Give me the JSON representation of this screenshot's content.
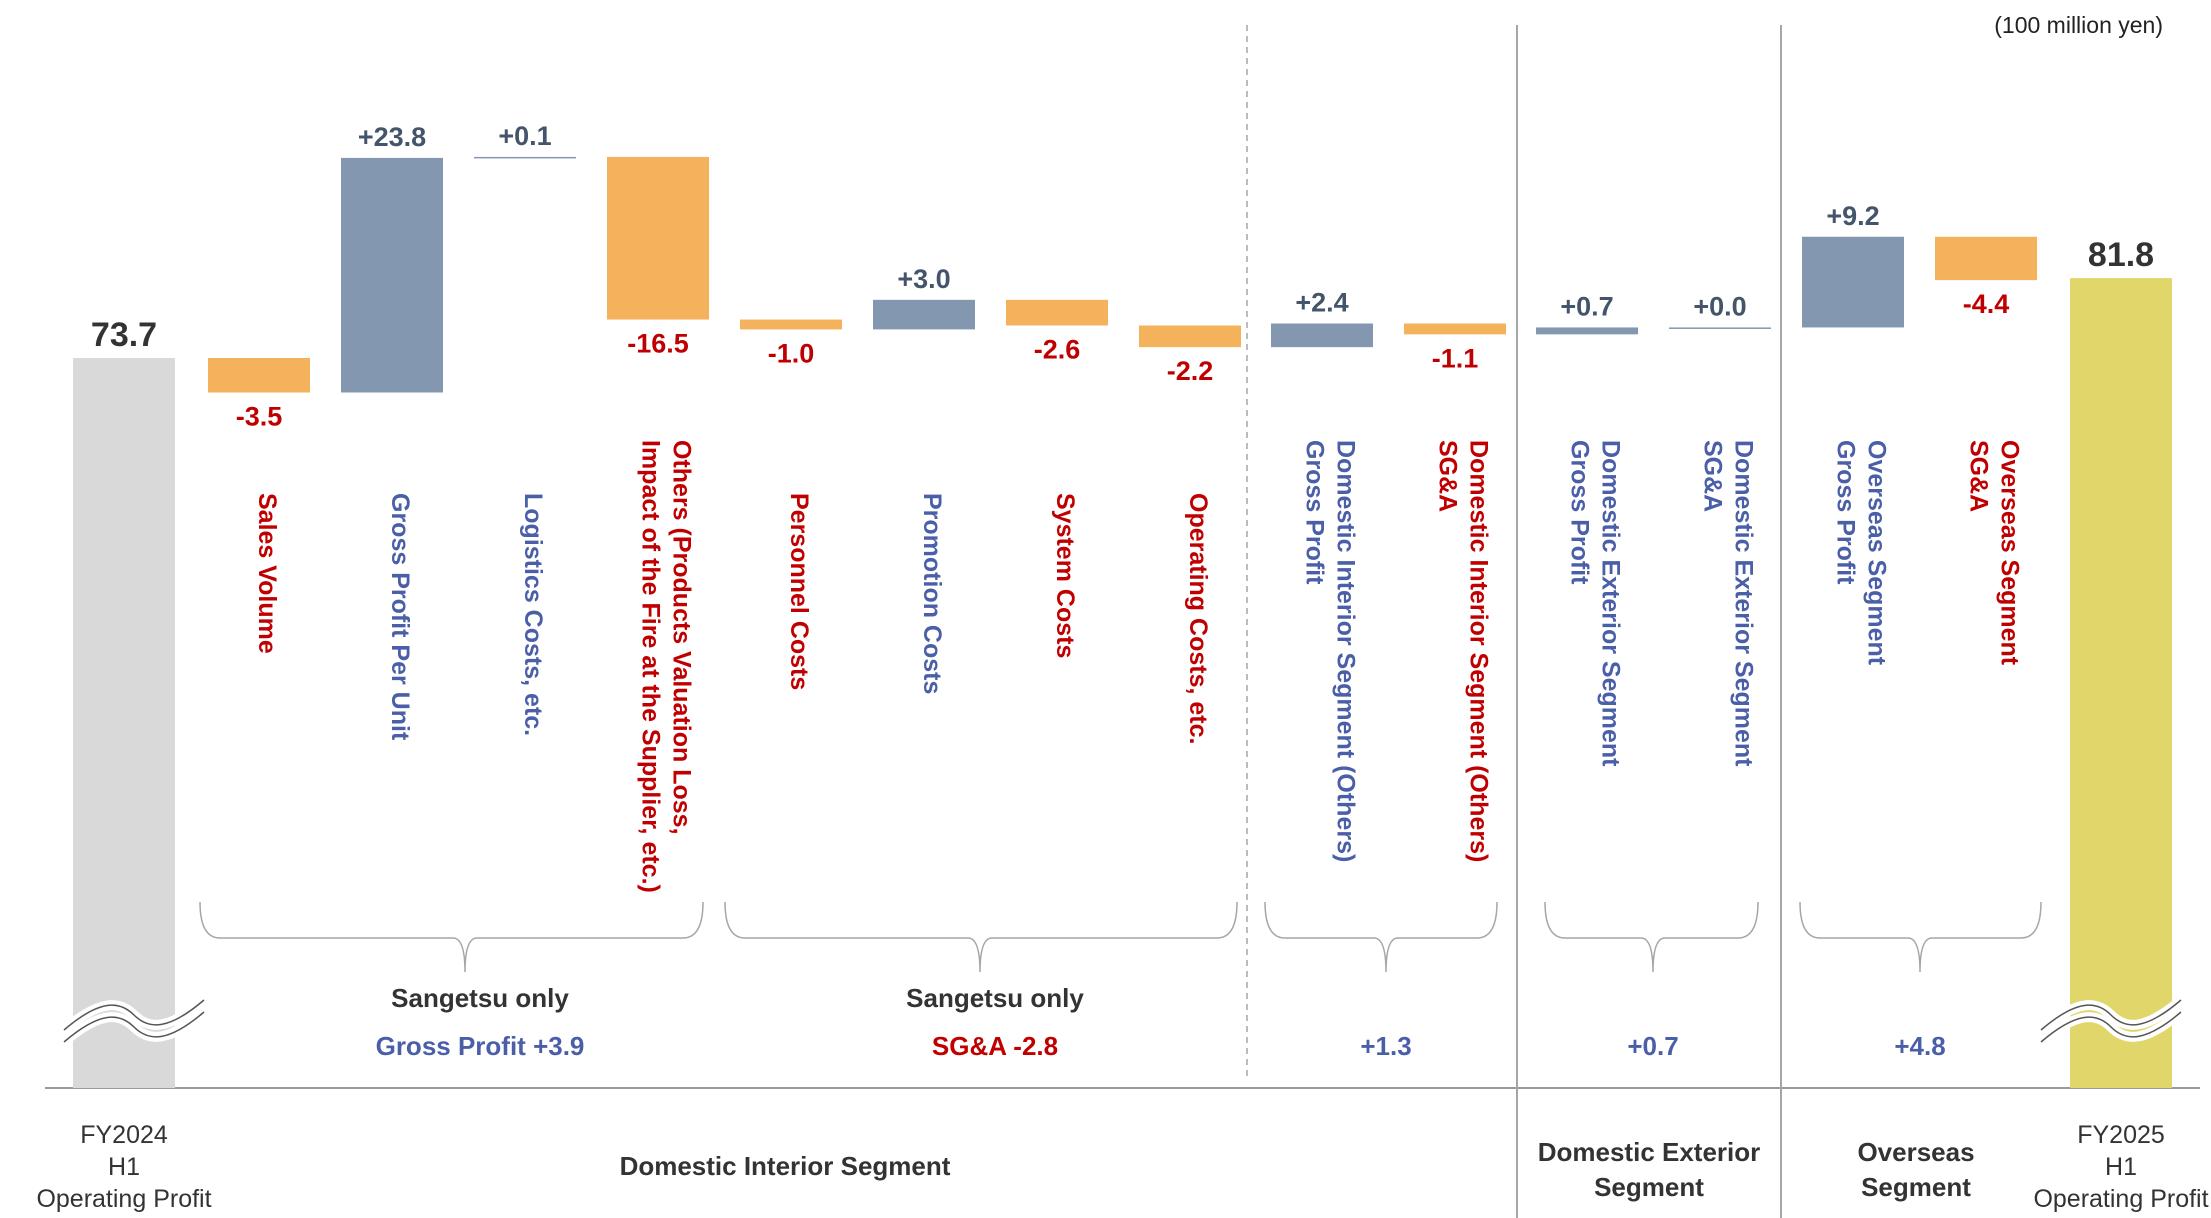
{
  "chart_data": {
    "type": "bar",
    "subtype": "waterfall",
    "unit": "(100 million yen)",
    "start": {
      "value": 73.7,
      "value_label": "73.7",
      "label": [
        "FY2024",
        "H1",
        "Operating Profit"
      ]
    },
    "end": {
      "value": 81.8,
      "value_label": "81.8",
      "label": [
        "FY2025",
        "H1",
        "Operating Profit"
      ]
    },
    "steps": [
      {
        "value": -3.5,
        "value_label": "-3.5",
        "category": [
          "Sales Volume"
        ],
        "kind": "decrease"
      },
      {
        "value": 23.8,
        "value_label": "+23.8",
        "category": [
          "Gross Profit Per Unit"
        ],
        "kind": "increase"
      },
      {
        "value": 0.1,
        "value_label": "+0.1",
        "category": [
          "Logistics Costs, etc."
        ],
        "kind": "increase"
      },
      {
        "value": -16.5,
        "value_label": "-16.5",
        "category": [
          "Others (Products Valuation Loss,",
          "Impact of the Fire at the Supplier, etc.)"
        ],
        "kind": "decrease"
      },
      {
        "value": -1.0,
        "value_label": "-1.0",
        "category": [
          "Personnel Costs"
        ],
        "kind": "decrease"
      },
      {
        "value": 3.0,
        "value_label": "+3.0",
        "category": [
          "Promotion Costs"
        ],
        "kind": "increase"
      },
      {
        "value": -2.6,
        "value_label": "-2.6",
        "category": [
          "System Costs"
        ],
        "kind": "decrease"
      },
      {
        "value": -2.2,
        "value_label": "-2.2",
        "category": [
          "Operating Costs, etc."
        ],
        "kind": "decrease"
      },
      {
        "value": 2.4,
        "value_label": "+2.4",
        "category": [
          "Domestic Interior Segment (Others)",
          "Gross Profit"
        ],
        "kind": "increase"
      },
      {
        "value": -1.1,
        "value_label": "-1.1",
        "category": [
          "Domestic Interior Segment (Others)",
          "SG&A"
        ],
        "kind": "decrease"
      },
      {
        "value": 0.7,
        "value_label": "+0.7",
        "category": [
          "Domestic Exterior Segment",
          "Gross Profit"
        ],
        "kind": "increase"
      },
      {
        "value": 0.0,
        "value_label": "+0.0",
        "category": [
          "Domestic Exterior Segment",
          "SG&A"
        ],
        "kind": "increase"
      },
      {
        "value": 9.2,
        "value_label": "+9.2",
        "category": [
          "Overseas Segment",
          "Gross Profit"
        ],
        "kind": "increase"
      },
      {
        "value": -4.4,
        "value_label": "-4.4",
        "category": [
          "Overseas Segment",
          "SG&A"
        ],
        "kind": "decrease"
      }
    ],
    "groups": [
      {
        "lines": [
          "Sangetsu only",
          "Gross Profit +3.9"
        ]
      },
      {
        "lines": [
          "Sangetsu only",
          "SG&A -2.8"
        ]
      },
      {
        "lines": [
          "+1.3"
        ]
      },
      {
        "lines": [
          "+0.7"
        ]
      },
      {
        "lines": [
          "+4.8"
        ]
      }
    ],
    "segments": [
      {
        "name": [
          "Domestic Interior Segment"
        ]
      },
      {
        "name": [
          "Domestic Exterior",
          "Segment"
        ]
      },
      {
        "name": [
          "Overseas",
          "Segment"
        ]
      }
    ],
    "axis_break": true,
    "colors": {
      "increase": "#8497b0",
      "decrease": "#f4b25c",
      "start": "#d9d9d9",
      "end": "#e0d66a",
      "value_increase": "#44546a",
      "value_decrease": "#c00000",
      "total_value": "#333333",
      "label_increase": "#4a5fa8",
      "label_decrease": "#c00000",
      "group_black": "#333333",
      "divider": "#a6a6a6",
      "brace": "#a6a6a6"
    }
  }
}
